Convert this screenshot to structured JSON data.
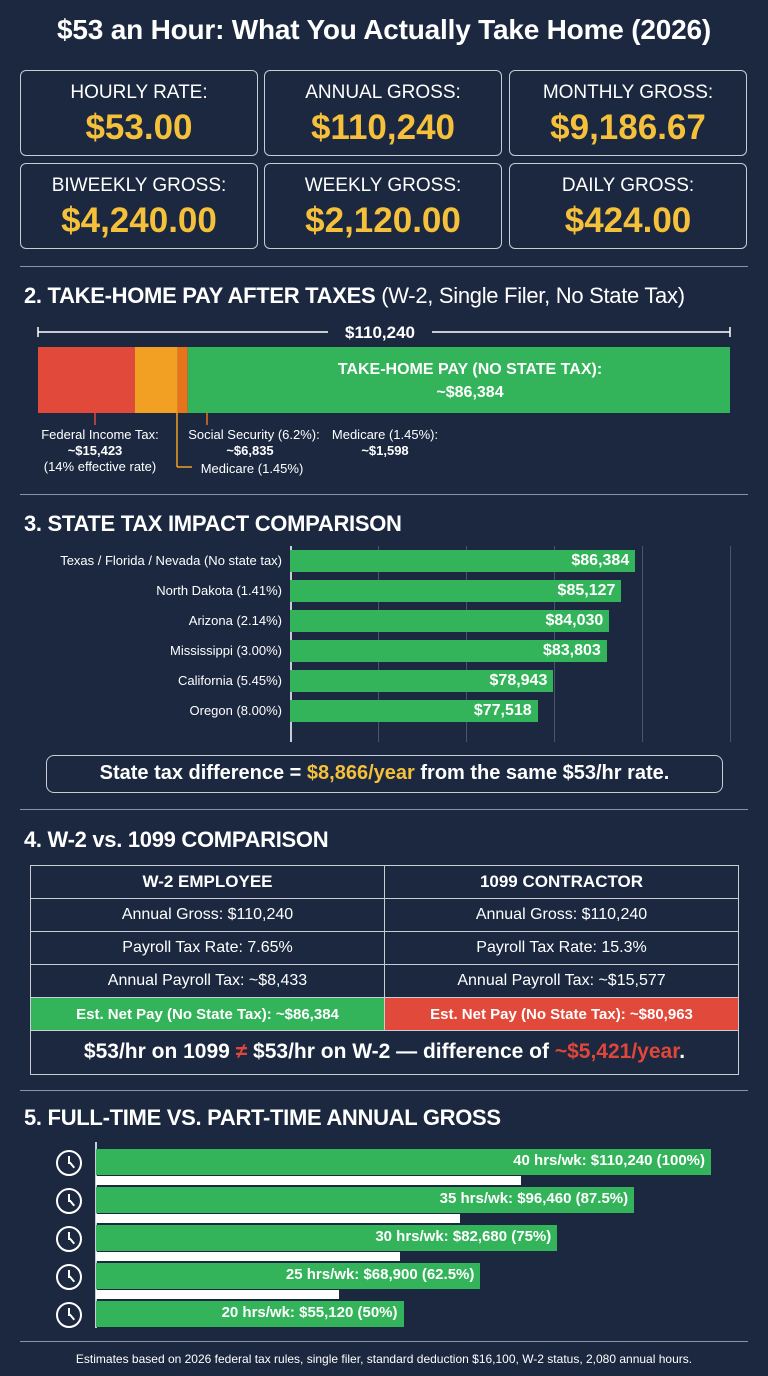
{
  "title": "$53 an Hour: What You Actually Take Home (2026)",
  "summary_cards": [
    {
      "label": "HOURLY RATE:",
      "value": "$53.00"
    },
    {
      "label": "ANNUAL GROSS:",
      "value": "$110,240"
    },
    {
      "label": "MONTHLY GROSS:",
      "value": "$9,186.67"
    },
    {
      "label": "BIWEEKLY GROSS:",
      "value": "$4,240.00"
    },
    {
      "label": "WEEKLY GROSS:",
      "value": "$2,120.00"
    },
    {
      "label": "DAILY GROSS:",
      "value": "$424.00"
    }
  ],
  "section2": {
    "title": "2. TAKE-HOME PAY AFTER TAXES",
    "subtitle": "(W-2, Single Filer, No State Tax)",
    "total_label": "$110,240",
    "take_home_label": "TAKE-HOME PAY (NO STATE TAX):",
    "take_home_value": "~$86,384",
    "federal_label": "Federal Income Tax:",
    "federal_value": "~$15,423",
    "federal_note": "(14% effective rate)",
    "ss_label": "Social Security (6.2%):",
    "ss_value": "~$6,835",
    "medicare_label": "Medicare (1.45%):",
    "medicare_value": "~$1,598",
    "medicare_label2": "Medicare (1.45%)"
  },
  "section3": {
    "title": "3. STATE TAX IMPACT COMPARISON",
    "callout_prefix": "State tax difference = ",
    "callout_highlight": "$8,866/year",
    "callout_suffix": " from the same $53/hr rate."
  },
  "section4": {
    "title": "4. W-2 vs. 1099 COMPARISON",
    "columns": [
      "W-2 EMPLOYEE",
      "1099 CONTRACTOR"
    ],
    "rows": [
      [
        "Annual Gross: $110,240",
        "Annual Gross: $110,240"
      ],
      [
        "Payroll Tax Rate: 7.65%",
        "Payroll Tax Rate: 15.3%"
      ],
      [
        "Annual Payroll Tax: ~$8,433",
        "Annual Payroll Tax: ~$15,577"
      ]
    ],
    "net_w2": "Est. Net Pay (No State Tax): ~$86,384",
    "net_1099": "Est. Net Pay (No State Tax): ~$80,963",
    "callout_prefix": "$53/hr on 1099 ",
    "callout_neq": "≠",
    "callout_mid": " $53/hr on W-2 — difference of ",
    "callout_highlight": "~$5,421/year",
    "callout_suffix": "."
  },
  "section5": {
    "title": "5. FULL-TIME VS. PART-TIME ANNUAL GROSS"
  },
  "footer": "Estimates based on 2026 federal tax rules, single filer, standard deduction $16,100, W-2 status, 2,080 annual hours.",
  "chart_data": [
    {
      "type": "bar",
      "orientation": "horizontal-stacked",
      "title": "",
      "total": 110240,
      "series": [
        {
          "name": "Federal Income Tax",
          "value": 15423,
          "color": "#e1493a"
        },
        {
          "name": "Social Security (6.2%)",
          "value": 6835,
          "color": "#f2a024"
        },
        {
          "name": "Medicare (1.45%)",
          "value": 1598,
          "color": "#e8731d"
        },
        {
          "name": "Take-Home Pay",
          "value": 86384,
          "color": "#33b35a"
        }
      ]
    },
    {
      "type": "bar",
      "orientation": "horizontal",
      "categories": [
        "Texas / Florida / Nevada (No state tax)",
        "North Dakota (1.41%)",
        "Arizona (2.14%)",
        "Mississippi (3.00%)",
        "California (5.45%)",
        "Oregon (8.00%)"
      ],
      "values": [
        86384,
        85127,
        84030,
        83803,
        78943,
        77518
      ],
      "value_labels": [
        "$86,384",
        "$85,127",
        "$84,030",
        "$83,803",
        "$78,943",
        "$77,518"
      ],
      "xlim": [
        55000,
        95000
      ],
      "grid": true,
      "color": "#33b35a"
    },
    {
      "type": "bar",
      "orientation": "horizontal",
      "categories": [
        "40 hrs/wk",
        "35 hrs/wk",
        "30 hrs/wk",
        "25 hrs/wk",
        "20 hrs/wk"
      ],
      "values": [
        110240,
        96460,
        82680,
        68900,
        55120
      ],
      "percent": [
        100,
        87.5,
        75,
        62.5,
        50
      ],
      "value_labels": [
        "40 hrs/wk: $110,240 (100%)",
        "35 hrs/wk: $96,460 (87.5%)",
        "30 hrs/wk: $82,680 (75%)",
        "25 hrs/wk: $68,900 (62.5%)",
        "20 hrs/wk: $55,120 (50%)"
      ],
      "color": "#33b35a"
    }
  ]
}
